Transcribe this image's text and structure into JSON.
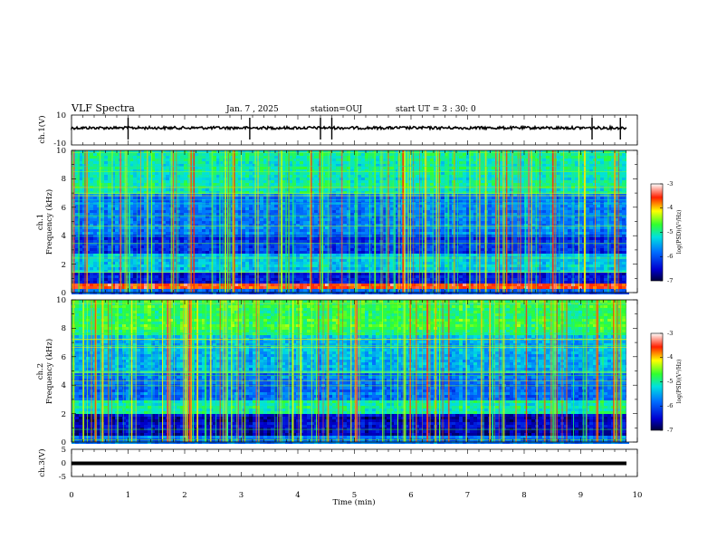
{
  "header": {
    "title": "VLF Spectra",
    "date": "Jan. 7 , 2025",
    "station": "station=OUJ",
    "start": "start UT = 3 : 30: 0"
  },
  "chart_data": [
    {
      "type": "line",
      "panel": "ch1-waveform",
      "ylabel": "ch.1(V)",
      "ylim": [
        -10,
        10
      ],
      "yticks": [
        "10",
        "-10"
      ],
      "xlim": [
        0,
        10
      ],
      "approx_level": 0,
      "spike_times_min": [
        1.0,
        3.15,
        4.4,
        4.6,
        9.2,
        9.7
      ],
      "color": "#000000"
    },
    {
      "type": "heatmap",
      "panel": "ch1-spectrogram",
      "ylabel_line1": "ch.1",
      "ylabel_line2": "Frequency (kHz)",
      "ylim": [
        0,
        10
      ],
      "yticks": [
        "0",
        "2",
        "4",
        "6",
        "8",
        "10"
      ],
      "xlim": [
        0,
        10
      ],
      "colorbar": {
        "label": "log(PSD)(V²/Hz)",
        "range": [
          -7,
          -3
        ],
        "ticks": [
          "-3",
          "-4",
          "-5",
          "-6",
          "-7"
        ]
      }
    },
    {
      "type": "heatmap",
      "panel": "ch2-spectrogram",
      "ylabel_line1": "ch.2",
      "ylabel_line2": "Frequency (kHz)",
      "ylim": [
        0,
        10
      ],
      "yticks": [
        "0",
        "2",
        "4",
        "6",
        "8",
        "10"
      ],
      "xlim": [
        0,
        10
      ],
      "colorbar": {
        "label": "log(PSD)(V²/Hz)",
        "range": [
          -7,
          -3
        ],
        "ticks": [
          "-3",
          "-4",
          "-5",
          "-6",
          "-7"
        ]
      }
    },
    {
      "type": "line",
      "panel": "ch3-waveform",
      "ylabel": "ch.3(V)",
      "ylim": [
        -5,
        5
      ],
      "yticks": [
        "5",
        "0",
        "-5"
      ],
      "xlim": [
        0,
        10
      ],
      "approx_level": 0,
      "color": "#000000"
    }
  ],
  "xaxis": {
    "label": "Time (min)",
    "ticks": [
      "0",
      "1",
      "2",
      "3",
      "4",
      "5",
      "6",
      "7",
      "8",
      "9",
      "10"
    ]
  }
}
